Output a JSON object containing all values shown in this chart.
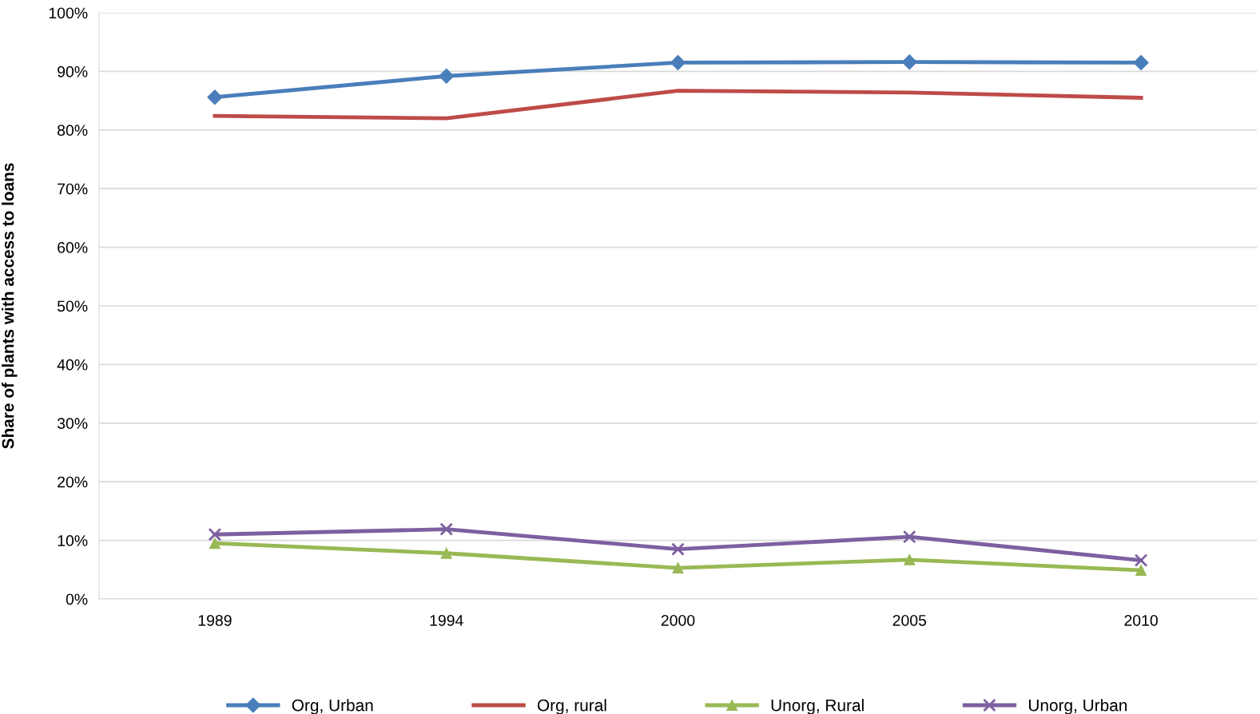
{
  "chart_data": {
    "type": "line",
    "ylabel": "Share of plants with access to loans",
    "categories": [
      "1989",
      "1994",
      "2000",
      "2005",
      "2010"
    ],
    "series": [
      {
        "name": "Org, Urban",
        "color": "#4a7ebb",
        "marker": "diamond",
        "values": [
          85.6,
          89.2,
          91.5,
          91.6,
          91.5
        ]
      },
      {
        "name": "Org, rural",
        "color": "#be4b48",
        "marker": "none",
        "values": [
          82.4,
          82.0,
          86.7,
          86.4,
          85.5
        ]
      },
      {
        "name": "Unorg, Rural",
        "color": "#98b954",
        "marker": "triangle",
        "values": [
          9.5,
          7.8,
          5.3,
          6.7,
          4.9
        ]
      },
      {
        "name": "Unorg, Urban",
        "color": "#7d60a0",
        "marker": "cross",
        "values": [
          11.0,
          11.9,
          8.5,
          10.6,
          6.6
        ]
      }
    ],
    "ylim": [
      0,
      100
    ],
    "yticks": [
      {
        "value": 0,
        "label": "0%"
      },
      {
        "value": 10,
        "label": "10%"
      },
      {
        "value": 20,
        "label": "20%"
      },
      {
        "value": 30,
        "label": "30%"
      },
      {
        "value": 40,
        "label": "40%"
      },
      {
        "value": 50,
        "label": "50%"
      },
      {
        "value": 60,
        "label": "60%"
      },
      {
        "value": 70,
        "label": "70%"
      },
      {
        "value": 80,
        "label": "80%"
      },
      {
        "value": 90,
        "label": "90%"
      },
      {
        "value": 100,
        "label": "100%"
      }
    ],
    "grid": "y",
    "legend": "bottom"
  }
}
